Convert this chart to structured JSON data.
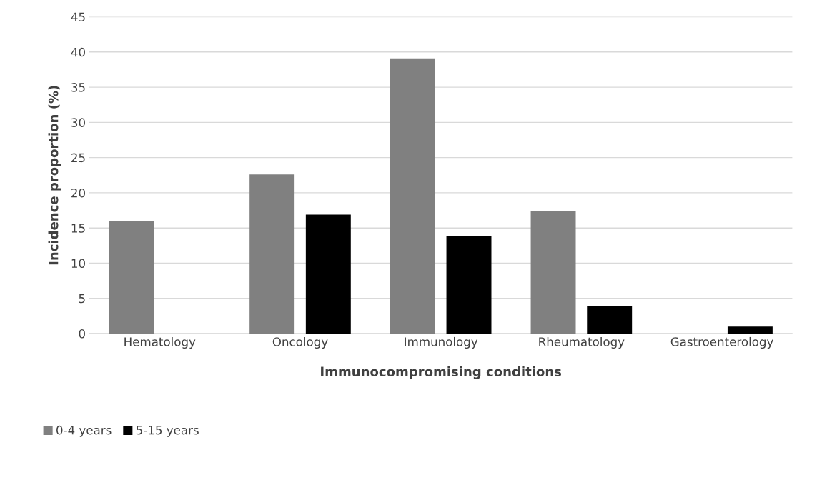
{
  "chart_data": {
    "type": "bar",
    "xlabel": "Immunocompromising conditions",
    "ylabel": "Incidence proportion (%)",
    "categories": [
      "Hematology",
      "Oncology",
      "Immunology",
      "Rheumatology",
      "Gastroenterology"
    ],
    "series": [
      {
        "name": "0-4 years",
        "color": "#808080",
        "values": [
          16.0,
          22.6,
          39.1,
          17.4,
          0
        ]
      },
      {
        "name": "5-15 years",
        "color": "#000000",
        "values": [
          0,
          16.9,
          13.8,
          3.9,
          1.0
        ]
      }
    ],
    "ylim": [
      0,
      45
    ],
    "yticks": [
      0,
      5,
      10,
      15,
      20,
      25,
      30,
      35,
      40,
      45
    ],
    "grid": "y",
    "legend": "bottom left"
  }
}
